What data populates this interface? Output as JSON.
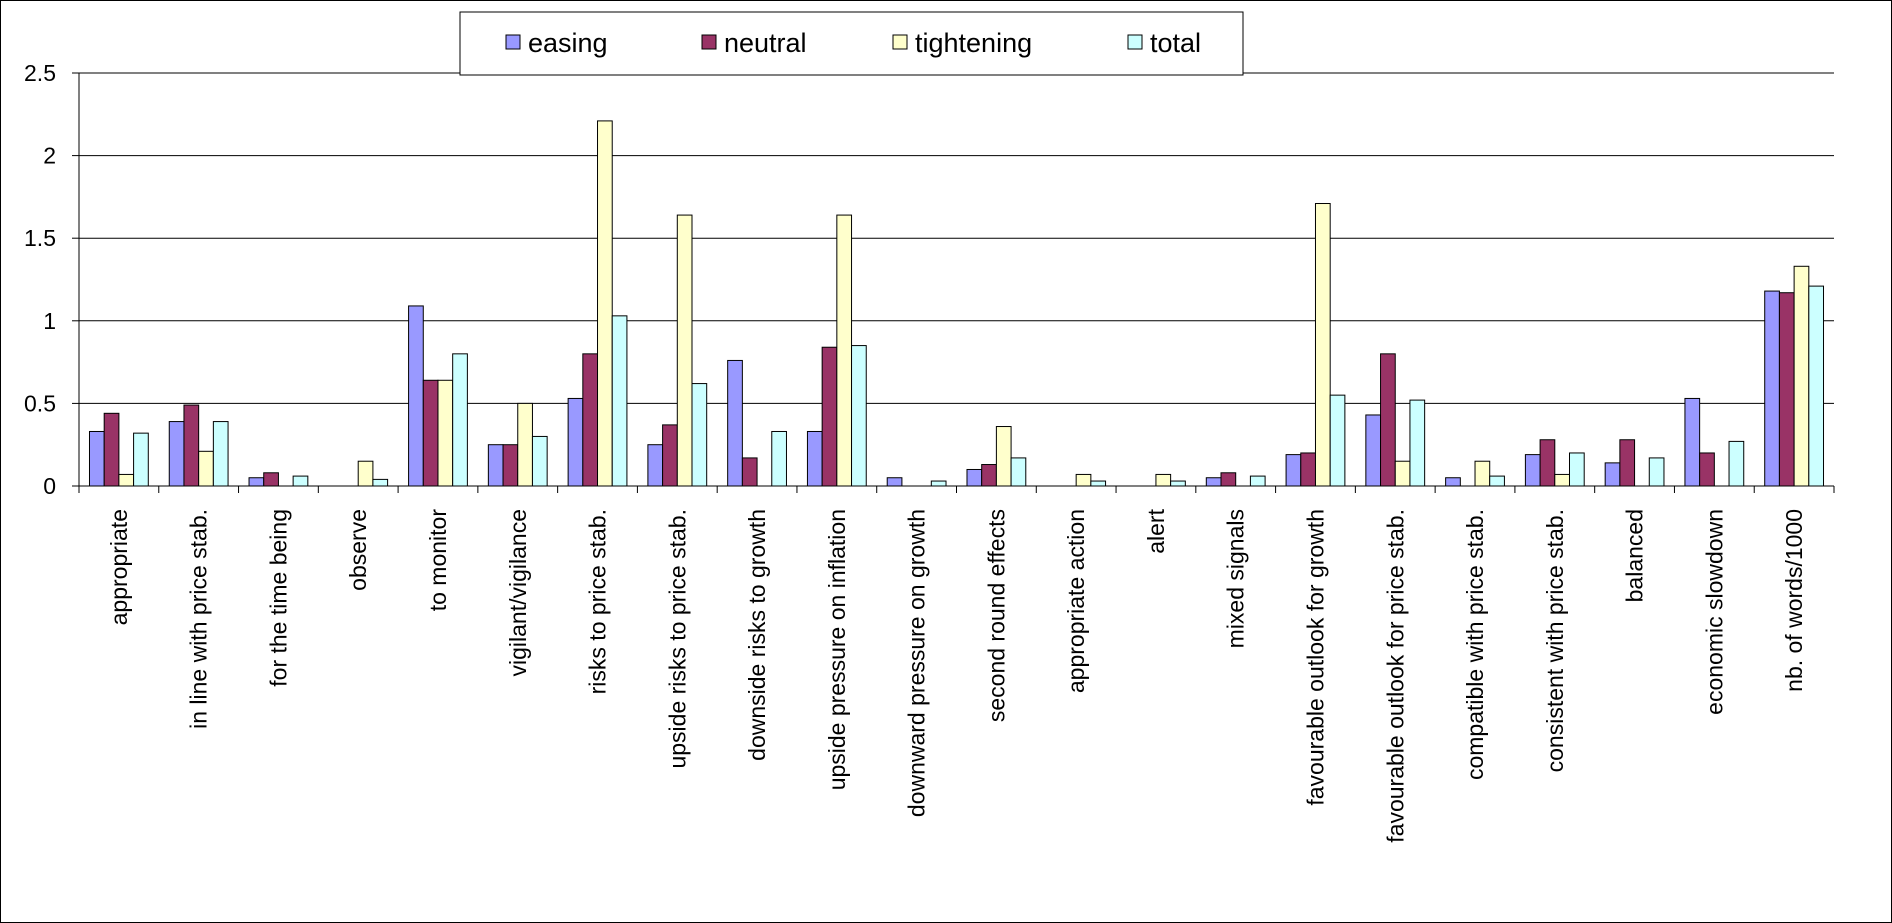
{
  "chart_data": {
    "type": "bar",
    "title": "",
    "xlabel": "",
    "ylabel": "",
    "ylim": [
      0,
      2.5
    ],
    "yticks": [
      0,
      0.5,
      1,
      1.5,
      2,
      2.5
    ],
    "ytick_labels": [
      "0",
      "0.5",
      "1",
      "1.5",
      "2",
      "2.5"
    ],
    "grid": true,
    "legend_position": "top-center",
    "categories": [
      "appropriate",
      "in line with price stab.",
      "for the time being",
      "observe",
      "to monitor",
      "vigilant/vigilance",
      "risks to price stab.",
      "upside risks to price stab.",
      "downside risks to growth",
      "upside pressure on inflation",
      "downward pressure on growth",
      "second round effects",
      "appropriate action",
      "alert",
      "mixed signals",
      "favourable outlook for growth",
      "favourable outlook for price stab.",
      "compatible with price stab.",
      "consistent with price stab.",
      "balanced",
      "economic slowdown",
      "nb. of words/1000"
    ],
    "series": [
      {
        "name": "easing",
        "color": "#9999ff",
        "values": [
          0.33,
          0.39,
          0.05,
          0,
          1.09,
          0.25,
          0.53,
          0.25,
          0.76,
          0.33,
          0.05,
          0.1,
          0,
          0,
          0.05,
          0.19,
          0.43,
          0.05,
          0.19,
          0.14,
          0.53,
          1.18
        ]
      },
      {
        "name": "neutral",
        "color": "#993366",
        "values": [
          0.44,
          0.49,
          0.08,
          0,
          0.64,
          0.25,
          0.8,
          0.37,
          0.17,
          0.84,
          0,
          0.13,
          0,
          0,
          0.08,
          0.2,
          0.8,
          0,
          0.28,
          0.28,
          0.2,
          1.17
        ]
      },
      {
        "name": "tightening",
        "color": "#ffffcc",
        "values": [
          0.07,
          0.21,
          0,
          0.15,
          0.64,
          0.5,
          2.21,
          1.64,
          0,
          1.64,
          0,
          0.36,
          0.07,
          0.07,
          0,
          1.71,
          0.15,
          0.15,
          0.07,
          0,
          0,
          1.33
        ]
      },
      {
        "name": "total",
        "color": "#ccffff",
        "values": [
          0.32,
          0.39,
          0.06,
          0.04,
          0.8,
          0.3,
          1.03,
          0.62,
          0.33,
          0.85,
          0.03,
          0.17,
          0.03,
          0.03,
          0.06,
          0.55,
          0.52,
          0.06,
          0.2,
          0.17,
          0.27,
          1.21
        ]
      }
    ]
  }
}
